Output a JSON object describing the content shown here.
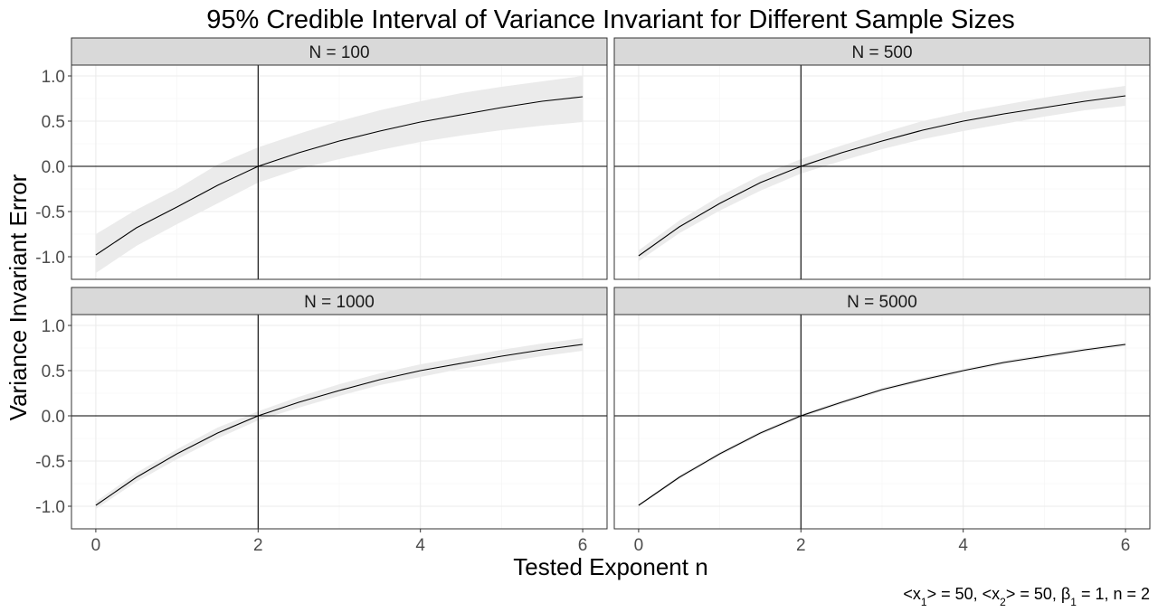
{
  "chart_data": {
    "type": "line",
    "title": "95% Credible Interval of Variance Invariant for Different Sample Sizes",
    "xlabel": "Tested Exponent n",
    "ylabel": "Variance Invariant Error",
    "xlim": [
      -0.3,
      6.3
    ],
    "ylim": [
      -1.25,
      1.12
    ],
    "x_ticks": [
      0,
      2,
      4,
      6
    ],
    "y_ticks": [
      -1.0,
      -0.5,
      0.0,
      0.5,
      1.0
    ],
    "x_tick_labels": [
      "0",
      "2",
      "4",
      "6"
    ],
    "y_tick_labels": [
      "-1.0",
      "-0.5",
      "0.0",
      "0.5",
      "1.0"
    ],
    "reference_lines": {
      "x": 2,
      "y": 0
    },
    "grid": true,
    "caption": {
      "a": "<x",
      "a_sub": "1",
      "b": "> = 50, <x",
      "b_sub": "2",
      "c": "> = 50, β",
      "c_sub": "1",
      "d": " = 1, n = 2"
    },
    "x": [
      0,
      0.5,
      1,
      1.5,
      2,
      2.5,
      3,
      3.5,
      4,
      4.5,
      5,
      5.5,
      6
    ],
    "panels": [
      {
        "label": "N = 100",
        "mean": [
          -0.98,
          -0.68,
          -0.45,
          -0.21,
          0.0,
          0.15,
          0.28,
          0.39,
          0.49,
          0.57,
          0.65,
          0.72,
          0.77
        ],
        "lower": [
          -1.18,
          -0.88,
          -0.64,
          -0.41,
          -0.18,
          -0.03,
          0.08,
          0.18,
          0.27,
          0.34,
          0.4,
          0.45,
          0.49
        ],
        "upper": [
          -0.75,
          -0.48,
          -0.25,
          0.02,
          0.21,
          0.36,
          0.5,
          0.62,
          0.72,
          0.81,
          0.88,
          0.94,
          1.0
        ]
      },
      {
        "label": "N = 500",
        "mean": [
          -0.99,
          -0.67,
          -0.41,
          -0.18,
          0.0,
          0.15,
          0.28,
          0.4,
          0.5,
          0.58,
          0.65,
          0.72,
          0.78
        ],
        "lower": [
          -1.05,
          -0.74,
          -0.49,
          -0.27,
          -0.08,
          0.06,
          0.19,
          0.3,
          0.39,
          0.47,
          0.55,
          0.62,
          0.67
        ],
        "upper": [
          -0.93,
          -0.6,
          -0.33,
          -0.1,
          0.08,
          0.23,
          0.37,
          0.5,
          0.6,
          0.68,
          0.76,
          0.83,
          0.89
        ]
      },
      {
        "label": "N = 1000",
        "mean": [
          -0.99,
          -0.68,
          -0.42,
          -0.19,
          0.0,
          0.15,
          0.28,
          0.4,
          0.5,
          0.58,
          0.66,
          0.73,
          0.79
        ],
        "lower": [
          -1.03,
          -0.73,
          -0.48,
          -0.25,
          -0.05,
          0.09,
          0.22,
          0.34,
          0.43,
          0.52,
          0.59,
          0.66,
          0.72
        ],
        "upper": [
          -0.95,
          -0.63,
          -0.37,
          -0.13,
          0.05,
          0.21,
          0.35,
          0.47,
          0.57,
          0.65,
          0.73,
          0.8,
          0.86
        ]
      },
      {
        "label": "N = 5000",
        "mean": [
          -0.99,
          -0.68,
          -0.42,
          -0.19,
          0.0,
          0.15,
          0.29,
          0.4,
          0.5,
          0.59,
          0.66,
          0.73,
          0.79
        ],
        "lower": [
          -1.0,
          -0.7,
          -0.44,
          -0.21,
          -0.02,
          0.13,
          0.27,
          0.38,
          0.48,
          0.57,
          0.64,
          0.71,
          0.77
        ],
        "upper": [
          -0.98,
          -0.66,
          -0.4,
          -0.17,
          0.02,
          0.17,
          0.31,
          0.42,
          0.52,
          0.61,
          0.68,
          0.75,
          0.81
        ]
      }
    ]
  }
}
